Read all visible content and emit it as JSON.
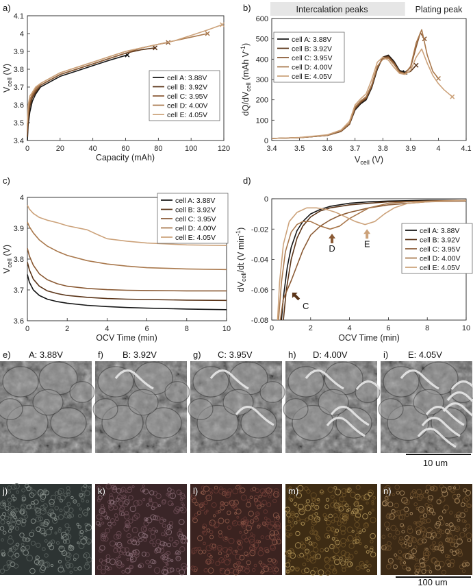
{
  "colors": {
    "A": "#141414",
    "B": "#5a3418",
    "C": "#8a5a34",
    "D": "#a9784c",
    "E": "#cca27a",
    "band": "#e6e6e6"
  },
  "legend_entries": [
    "cell A: 3.88V",
    "cell B: 3.92V",
    "cell C: 3.95V",
    "cell D: 4.00V",
    "cell E: 4.05V"
  ],
  "chart_data": [
    {
      "panel": "a)",
      "type": "line",
      "xlabel": "Capacity (mAh)",
      "ylabel": "V",
      "ylabel_sub": "cell",
      "ylabel_unit": " (V)",
      "xlim": [
        0,
        120
      ],
      "ylim": [
        3.4,
        4.1
      ],
      "xticks": [
        0,
        20,
        40,
        60,
        80,
        100,
        120
      ],
      "xtick_labels": [
        "0",
        "20",
        "40",
        "60",
        "80",
        "100",
        "120"
      ],
      "yticks": [
        3.4,
        3.5,
        3.6,
        3.7,
        3.8,
        3.9,
        4.0,
        4.1
      ],
      "ytick_labels": [
        "3.4",
        "3.5",
        "3.6",
        "3.7",
        "3.8",
        "3.9",
        "4",
        "4.1"
      ],
      "series": [
        {
          "name": "cell A: 3.88V",
          "x": [
            0,
            0.5,
            1.5,
            3,
            5,
            8,
            12,
            20,
            30,
            40,
            50,
            61
          ],
          "y": [
            3.4,
            3.49,
            3.56,
            3.62,
            3.66,
            3.7,
            3.72,
            3.76,
            3.79,
            3.82,
            3.85,
            3.88
          ],
          "end": [
            61,
            3.88
          ]
        },
        {
          "name": "cell B: 3.92V",
          "x": [
            0,
            0.5,
            1.5,
            3,
            5,
            8,
            12,
            20,
            30,
            40,
            50,
            60,
            70,
            78
          ],
          "y": [
            3.42,
            3.52,
            3.59,
            3.64,
            3.67,
            3.71,
            3.73,
            3.77,
            3.8,
            3.83,
            3.86,
            3.89,
            3.91,
            3.92
          ],
          "end": [
            78,
            3.92
          ]
        },
        {
          "name": "cell C: 3.95V",
          "x": [
            0,
            0.5,
            1.5,
            3,
            5,
            8,
            12,
            20,
            30,
            40,
            50,
            60,
            70,
            80,
            86
          ],
          "y": [
            3.45,
            3.55,
            3.61,
            3.65,
            3.68,
            3.71,
            3.73,
            3.77,
            3.8,
            3.83,
            3.86,
            3.89,
            3.92,
            3.94,
            3.95
          ],
          "end": [
            86,
            3.95
          ]
        },
        {
          "name": "cell D: 4.00V",
          "x": [
            0,
            0.5,
            1.5,
            3,
            5,
            8,
            12,
            20,
            30,
            40,
            50,
            60,
            70,
            80,
            90,
            100,
            110
          ],
          "y": [
            3.48,
            3.58,
            3.63,
            3.66,
            3.69,
            3.72,
            3.74,
            3.78,
            3.81,
            3.84,
            3.87,
            3.9,
            3.92,
            3.94,
            3.96,
            3.98,
            4.0
          ],
          "end": [
            110,
            4.0
          ]
        },
        {
          "name": "cell E: 4.05V",
          "x": [
            0,
            0.5,
            1.5,
            3,
            5,
            8,
            12,
            20,
            30,
            40,
            50,
            60,
            70,
            80,
            90,
            100,
            110,
            119
          ],
          "y": [
            3.5,
            3.6,
            3.65,
            3.67,
            3.7,
            3.72,
            3.74,
            3.78,
            3.81,
            3.84,
            3.87,
            3.9,
            3.92,
            3.94,
            3.96,
            3.99,
            4.02,
            4.05
          ],
          "end": [
            119,
            4.05
          ]
        }
      ]
    },
    {
      "panel": "b)",
      "type": "line",
      "xlabel": "V",
      "xlabel_sub": "cell",
      "xlabel_unit": " (V)",
      "ylabel": "dQ/dV",
      "ylabel_sub": "cell",
      "ylabel_unit": " (mAh V",
      "ylabel_sup": "-1",
      "ylabel_close": ")",
      "xlim": [
        3.4,
        4.1
      ],
      "ylim": [
        0,
        600
      ],
      "xticks": [
        3.4,
        3.5,
        3.6,
        3.7,
        3.8,
        3.9,
        4.0,
        4.1
      ],
      "xtick_labels": [
        "3.4",
        "3.5",
        "3.6",
        "3.7",
        "3.8",
        "3.9",
        "4",
        "4.1"
      ],
      "yticks": [
        0,
        100,
        200,
        300,
        400,
        500,
        600
      ],
      "ytick_labels": [
        "0",
        "100",
        "200",
        "300",
        "400",
        "500",
        "600"
      ],
      "band_labels": {
        "intercalation": "Intercalation peaks",
        "plating": "Plating peak"
      },
      "band_range": [
        3.4,
        3.88
      ],
      "series": [
        {
          "name": "cell A: 3.88V",
          "x": [
            3.4,
            3.5,
            3.6,
            3.65,
            3.68,
            3.7,
            3.72,
            3.74,
            3.76,
            3.78,
            3.8,
            3.82,
            3.84,
            3.86,
            3.88
          ],
          "y": [
            10,
            14,
            25,
            45,
            80,
            150,
            180,
            200,
            260,
            350,
            410,
            420,
            390,
            345,
            335
          ],
          "end": [
            3.88,
            335
          ]
        },
        {
          "name": "cell B: 3.92V",
          "x": [
            3.4,
            3.5,
            3.6,
            3.65,
            3.68,
            3.7,
            3.72,
            3.74,
            3.76,
            3.78,
            3.8,
            3.82,
            3.84,
            3.86,
            3.88,
            3.9,
            3.92
          ],
          "y": [
            10,
            14,
            25,
            45,
            80,
            155,
            185,
            205,
            265,
            355,
            410,
            415,
            385,
            340,
            330,
            340,
            370
          ],
          "end": [
            3.92,
            370
          ]
        },
        {
          "name": "cell C: 3.95V",
          "x": [
            3.4,
            3.5,
            3.6,
            3.65,
            3.68,
            3.7,
            3.72,
            3.74,
            3.76,
            3.78,
            3.8,
            3.82,
            3.84,
            3.86,
            3.88,
            3.9,
            3.92,
            3.935,
            3.95
          ],
          "y": [
            10,
            14,
            25,
            46,
            82,
            160,
            190,
            210,
            270,
            360,
            405,
            410,
            380,
            338,
            330,
            360,
            460,
            530,
            500
          ],
          "end": [
            3.95,
            500
          ]
        },
        {
          "name": "cell D: 4.00V",
          "x": [
            3.4,
            3.5,
            3.6,
            3.65,
            3.68,
            3.7,
            3.72,
            3.74,
            3.76,
            3.78,
            3.8,
            3.82,
            3.84,
            3.86,
            3.88,
            3.9,
            3.92,
            3.94,
            3.96,
            3.98,
            4.0
          ],
          "y": [
            10,
            14,
            26,
            48,
            85,
            165,
            195,
            215,
            275,
            365,
            400,
            405,
            375,
            335,
            330,
            365,
            480,
            545,
            420,
            340,
            305
          ],
          "end": [
            4.0,
            305
          ]
        },
        {
          "name": "cell E: 4.05V",
          "x": [
            3.4,
            3.5,
            3.6,
            3.65,
            3.68,
            3.7,
            3.72,
            3.74,
            3.76,
            3.78,
            3.8,
            3.82,
            3.84,
            3.86,
            3.88,
            3.9,
            3.92,
            3.94,
            3.96,
            3.98,
            4.0,
            4.02,
            4.05
          ],
          "y": [
            10,
            15,
            28,
            52,
            95,
            175,
            205,
            230,
            300,
            385,
            410,
            395,
            360,
            330,
            325,
            345,
            410,
            450,
            380,
            320,
            280,
            250,
            215
          ],
          "end": [
            4.05,
            215
          ]
        }
      ]
    },
    {
      "panel": "c)",
      "type": "line",
      "xlabel": "OCV Time (min)",
      "ylabel": "V",
      "ylabel_sub": "cell",
      "ylabel_unit": " (V)",
      "xlim": [
        0,
        10
      ],
      "ylim": [
        3.6,
        4.0
      ],
      "xticks": [
        0,
        2,
        4,
        6,
        8,
        10
      ],
      "xtick_labels": [
        "0",
        "2",
        "4",
        "6",
        "8",
        "10"
      ],
      "yticks": [
        3.6,
        3.7,
        3.8,
        3.9,
        4.0
      ],
      "ytick_labels": [
        "3.6",
        "3.7",
        "3.8",
        "3.9",
        "4"
      ],
      "series": [
        {
          "name": "cell A: 3.88V",
          "x": [
            0,
            0.1,
            0.3,
            0.6,
            1,
            1.5,
            2,
            3,
            4,
            5,
            6,
            8,
            10
          ],
          "y": [
            3.75,
            3.725,
            3.7,
            3.682,
            3.67,
            3.662,
            3.657,
            3.65,
            3.646,
            3.643,
            3.641,
            3.638,
            3.636
          ]
        },
        {
          "name": "cell B: 3.92V",
          "x": [
            0,
            0.1,
            0.3,
            0.6,
            1,
            1.5,
            2,
            3,
            4,
            5,
            6,
            8,
            10
          ],
          "y": [
            3.79,
            3.765,
            3.735,
            3.712,
            3.697,
            3.688,
            3.682,
            3.676,
            3.672,
            3.67,
            3.669,
            3.667,
            3.666
          ]
        },
        {
          "name": "cell C: 3.95V",
          "x": [
            0,
            0.1,
            0.3,
            0.6,
            1,
            1.5,
            2,
            3,
            4,
            5,
            6,
            8,
            10
          ],
          "y": [
            3.835,
            3.81,
            3.78,
            3.752,
            3.733,
            3.72,
            3.712,
            3.705,
            3.701,
            3.699,
            3.698,
            3.697,
            3.697
          ]
        },
        {
          "name": "cell D: 4.00V",
          "x": [
            0,
            0.1,
            0.3,
            0.6,
            1,
            1.5,
            2,
            3,
            4,
            5,
            6,
            8,
            10
          ],
          "y": [
            3.92,
            3.905,
            3.885,
            3.862,
            3.842,
            3.825,
            3.812,
            3.795,
            3.784,
            3.777,
            3.772,
            3.768,
            3.766
          ]
        },
        {
          "name": "cell E: 4.05V",
          "x": [
            0,
            0.1,
            0.3,
            0.6,
            1,
            1.5,
            2,
            3,
            3.5,
            4,
            5,
            6,
            8,
            10
          ],
          "y": [
            3.975,
            3.962,
            3.948,
            3.935,
            3.926,
            3.918,
            3.908,
            3.895,
            3.88,
            3.866,
            3.858,
            3.852,
            3.846,
            3.844
          ]
        }
      ]
    },
    {
      "panel": "d)",
      "type": "line",
      "xlabel": "OCV Time (min)",
      "ylabel": "dV",
      "ylabel_sub": "cell",
      "ylabel_unit": "/dt (V min",
      "ylabel_sup": "-1",
      "ylabel_close": ")",
      "xlim": [
        0,
        10
      ],
      "ylim": [
        -0.08,
        0
      ],
      "xticks": [
        0,
        2,
        4,
        6,
        8,
        10
      ],
      "xtick_labels": [
        "0",
        "2",
        "4",
        "6",
        "8",
        "10"
      ],
      "yticks": [
        0,
        -0.02,
        -0.04,
        -0.06,
        -0.08
      ],
      "ytick_labels": [
        "0",
        "-0.02",
        "-0.04",
        "-0.06",
        "-0.08"
      ],
      "annotations": [
        {
          "label": "C",
          "color": "#5a3418"
        },
        {
          "label": "D",
          "color": "#8a5a34"
        },
        {
          "label": "E",
          "color": "#cca27a"
        }
      ],
      "series": [
        {
          "name": "cell A: 3.88V",
          "x": [
            0.5,
            0.6,
            0.8,
            1.0,
            1.3,
            1.6,
            2,
            2.5,
            3,
            4,
            5,
            6,
            8,
            10
          ],
          "y": [
            -0.08,
            -0.065,
            -0.045,
            -0.032,
            -0.021,
            -0.015,
            -0.01,
            -0.007,
            -0.005,
            -0.003,
            -0.002,
            -0.0015,
            -0.001,
            -0.001
          ]
        },
        {
          "name": "cell B: 3.92V",
          "x": [
            0.6,
            0.75,
            1.0,
            1.3,
            1.6,
            2,
            2.5,
            3,
            4,
            5,
            6,
            8,
            10
          ],
          "y": [
            -0.08,
            -0.06,
            -0.04,
            -0.026,
            -0.018,
            -0.012,
            -0.008,
            -0.006,
            -0.004,
            -0.003,
            -0.002,
            -0.0015,
            -0.001
          ]
        },
        {
          "name": "cell C: 3.95V",
          "x": [
            0.45,
            0.5,
            0.6,
            0.8,
            1.0,
            1.3,
            1.6,
            2.0,
            2.5,
            3.0,
            3.5,
            4,
            5,
            6,
            8,
            10
          ],
          "y": [
            -0.08,
            -0.075,
            -0.066,
            -0.06,
            -0.054,
            -0.044,
            -0.034,
            -0.024,
            -0.018,
            -0.014,
            -0.011,
            -0.009,
            -0.006,
            -0.004,
            -0.002,
            -0.0015
          ]
        },
        {
          "name": "cell D: 4.00V",
          "x": [
            0.35,
            0.5,
            0.7,
            1.0,
            1.3,
            1.6,
            2.0,
            2.5,
            3.0,
            3.5,
            4.0,
            5,
            6,
            7,
            8,
            10
          ],
          "y": [
            -0.08,
            -0.055,
            -0.035,
            -0.022,
            -0.017,
            -0.015,
            -0.015,
            -0.018,
            -0.02,
            -0.018,
            -0.013,
            -0.006,
            -0.003,
            -0.002,
            -0.0015,
            -0.001
          ]
        },
        {
          "name": "cell E: 4.05V",
          "x": [
            0.3,
            0.4,
            0.6,
            0.9,
            1.3,
            1.8,
            2.3,
            2.8,
            3.3,
            3.8,
            4.3,
            4.8,
            5.3,
            5.8,
            6.3,
            7,
            8,
            10
          ],
          "y": [
            -0.08,
            -0.055,
            -0.03,
            -0.015,
            -0.009,
            -0.006,
            -0.006,
            -0.007,
            -0.009,
            -0.012,
            -0.015,
            -0.017,
            -0.015,
            -0.01,
            -0.006,
            -0.003,
            -0.002,
            -0.001
          ]
        }
      ]
    }
  ],
  "sem_row": {
    "panels": [
      {
        "letter": "e)",
        "label": "A: 3.88V"
      },
      {
        "letter": "f)",
        "label": "B: 3.92V"
      },
      {
        "letter": "g)",
        "label": "C: 3.95V"
      },
      {
        "letter": "h)",
        "label": "D: 4.00V"
      },
      {
        "letter": "i)",
        "label": "E: 4.05V"
      }
    ],
    "scale_label": "10 um"
  },
  "optical_row": {
    "panels": [
      {
        "letter": "j)",
        "tint": [
          "#2d3433",
          "#8d9591",
          "#5d6562"
        ]
      },
      {
        "letter": "k)",
        "tint": [
          "#3a2628",
          "#8a6f78",
          "#6b4b53"
        ]
      },
      {
        "letter": "l)",
        "tint": [
          "#3b2320",
          "#8e5a4a",
          "#6a3a34"
        ]
      },
      {
        "letter": "m)",
        "tint": [
          "#3e2c14",
          "#b3975a",
          "#6e5428"
        ]
      },
      {
        "letter": "n)",
        "tint": [
          "#3c2a16",
          "#a88a60",
          "#6a4e2c"
        ]
      }
    ],
    "scale_label": "100 um"
  }
}
